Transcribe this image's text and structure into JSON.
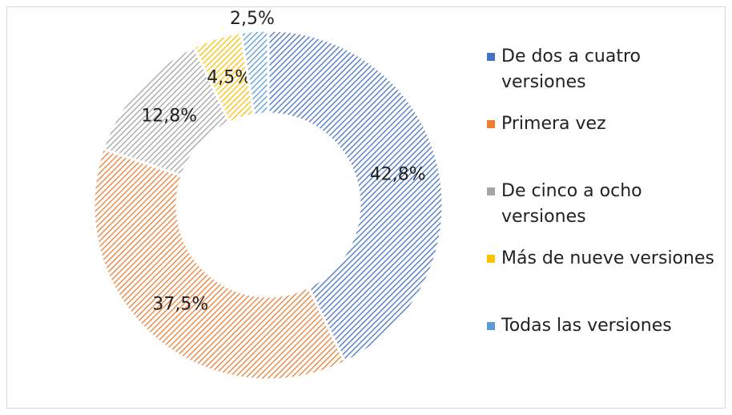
{
  "chart_data": {
    "type": "donut",
    "categories": [
      "De dos a cuatro versiones",
      "Primera vez",
      "De cinco a ocho versiones",
      "Más de nueve versiones",
      "Todas las versiones"
    ],
    "values": [
      42.8,
      37.5,
      12.8,
      4.5,
      2.5
    ],
    "value_labels": [
      "42,8%",
      "37,5%",
      "12,8%",
      "4,5%",
      "2,5%"
    ],
    "colors": [
      "#4472c4",
      "#ed7d31",
      "#a5a5a5",
      "#ffc000",
      "#5b9bd5"
    ],
    "legend": "right"
  }
}
